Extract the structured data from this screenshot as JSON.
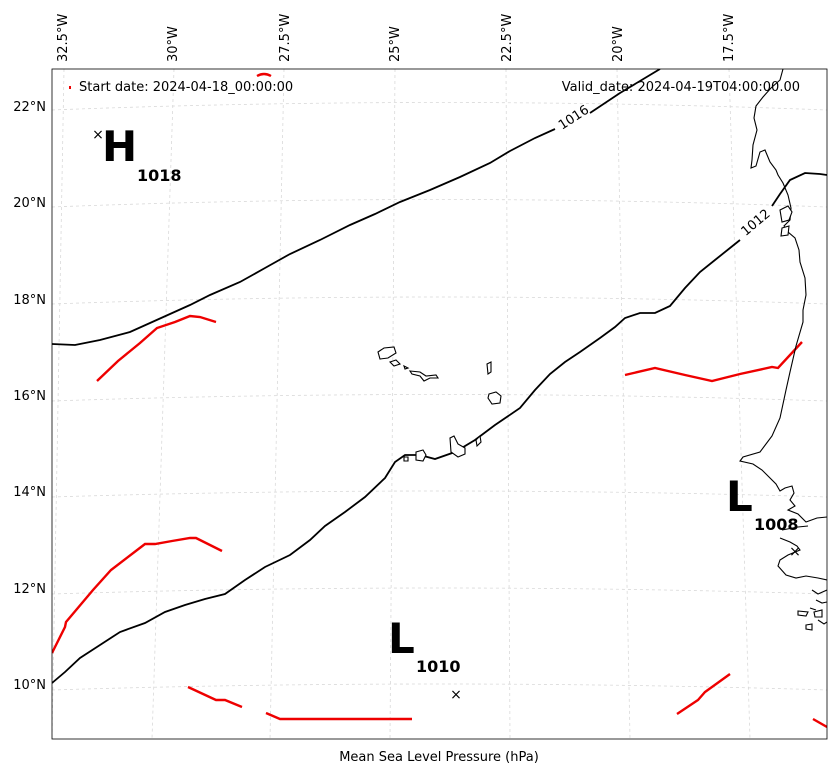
{
  "header": {
    "start_date": "Start date: 2024-04-18_00:00:00",
    "valid_date": "Valid_date: 2024-04-19T04:00:00.00"
  },
  "x_axis_label": "Mean Sea Level Pressure (hPa)",
  "lon_ticks": [
    "32.5°W",
    "30°W",
    "27.5°W",
    "25°W",
    "22.5°W",
    "20°W",
    "17.5°W"
  ],
  "lat_ticks": [
    "22°N",
    "20°N",
    "18°N",
    "16°N",
    "14°N",
    "12°N",
    "10°N"
  ],
  "pressure_centers": [
    {
      "type": "H",
      "value": "1018"
    },
    {
      "type": "L",
      "value": "1010"
    },
    {
      "type": "L",
      "value": "1008"
    }
  ],
  "isobar_labels": [
    "1016",
    "1012"
  ],
  "colors": {
    "isobar": "#000000",
    "front": "#ee0000",
    "coast": "#000000",
    "grid": "#d9d9d9"
  }
}
